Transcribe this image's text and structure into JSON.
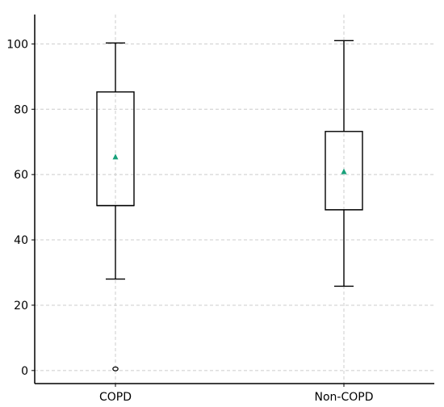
{
  "chart_data": {
    "type": "box",
    "title": "",
    "xlabel": "",
    "ylabel": "",
    "categories": [
      "COPD",
      "Non-COPD"
    ],
    "ylim": [
      -4,
      109
    ],
    "yticks": [
      0,
      20,
      40,
      60,
      80,
      100
    ],
    "grid": true,
    "boxes": [
      {
        "category": "COPD",
        "whisker_low": 28,
        "q1": 50.5,
        "median": 50.5,
        "q3": 85.3,
        "whisker_high": 100.3,
        "mean": 65.5,
        "outliers": [
          0.5
        ]
      },
      {
        "category": "Non-COPD",
        "whisker_low": 25.8,
        "q1": 49.2,
        "median": 49.2,
        "q3": 73.2,
        "whisker_high": 101,
        "mean": 61,
        "outliers": []
      }
    ],
    "colors": {
      "mean_marker": "#17a07a",
      "box": "#000000",
      "grid": "#cccccc"
    }
  }
}
